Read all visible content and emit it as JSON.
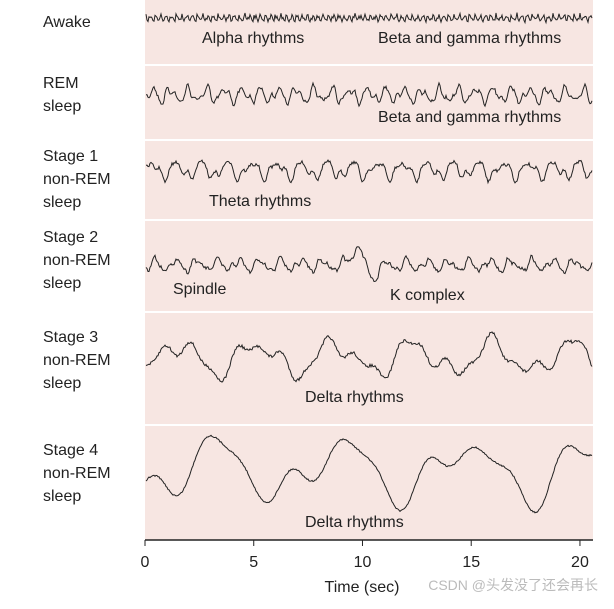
{
  "rows": [
    {
      "label": [
        "Awake"
      ],
      "annotations": [
        "Alpha rhythms",
        "Beta and gamma rhythms"
      ]
    },
    {
      "label": [
        "REM",
        "sleep"
      ],
      "annotations": [
        "Beta and gamma rhythms"
      ]
    },
    {
      "label": [
        "Stage 1",
        "non-REM",
        "sleep"
      ],
      "annotations": [
        "Theta rhythms"
      ]
    },
    {
      "label": [
        "Stage 2",
        "non-REM",
        "sleep"
      ],
      "annotations": [
        "Spindle",
        "K complex"
      ]
    },
    {
      "label": [
        "Stage 3",
        "non-REM",
        "sleep"
      ],
      "annotations": [
        "Delta rhythms"
      ]
    },
    {
      "label": [
        "Stage 4",
        "non-REM",
        "sleep"
      ],
      "annotations": [
        "Delta rhythms"
      ]
    }
  ],
  "x_axis": {
    "label": "Time (sec)",
    "xlim": [
      0,
      20.6
    ],
    "xticks": [
      0,
      5,
      10,
      15,
      20
    ]
  },
  "watermark": "CSDN @头发没了还会再长"
}
